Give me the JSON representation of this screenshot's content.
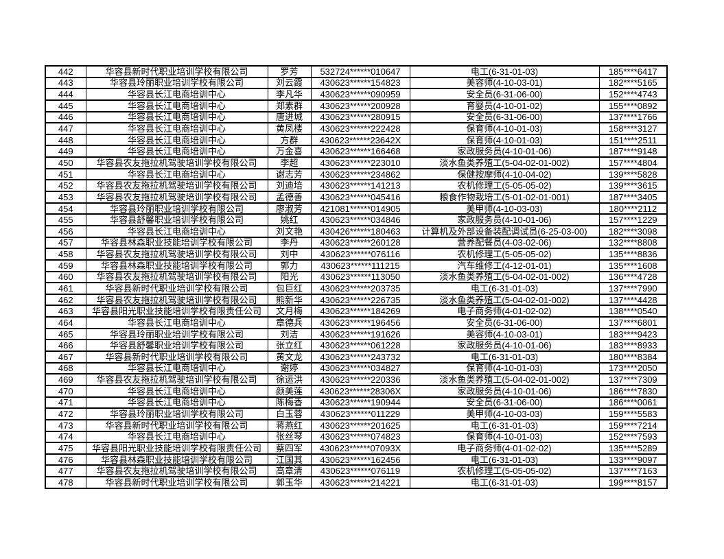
{
  "colors": {
    "background": "#ffffff",
    "border": "#000000",
    "text": "#000000"
  },
  "table": {
    "rows": [
      [
        "442",
        "华容县新时代职业培训学校有限公司",
        "罗芳",
        "532724******010647",
        "电工(6-31-01-03)",
        "185****6417"
      ],
      [
        "443",
        "华容县玲丽职业培训学校有限公司",
        "刘云霞",
        "430623******154823",
        "美容师(4-10-03-01)",
        "182****5165"
      ],
      [
        "444",
        "华容县长江电商培训中心",
        "李凡华",
        "430623******090959",
        "安全员(6-31-06-00)",
        "152****4743"
      ],
      [
        "445",
        "华容县长江电商培训中心",
        "郑素群",
        "430623******200928",
        "育婴员(4-10-01-02)",
        "155****0892"
      ],
      [
        "446",
        "华容县长江电商培训中心",
        "唐进城",
        "430623******280915",
        "安全员(6-31-06-00)",
        "137****1766"
      ],
      [
        "447",
        "华容县长江电商培训中心",
        "黄凤楼",
        "430623******222428",
        "保育师(4-10-01-03)",
        "158****3127"
      ],
      [
        "448",
        "华容县长江电商培训中心",
        "方群",
        "430623******23642X",
        "保育师(4-10-01-03)",
        "151****2511"
      ],
      [
        "449",
        "华容县长江电商培训中心",
        "万金喜",
        "430623******166468",
        "家政服务员(4-10-01-06)",
        "187****9148"
      ],
      [
        "450",
        "华容县农友拖拉机驾驶培训学校有限公司",
        "李超",
        "430623******223010",
        "淡水鱼类养殖工(5-04-02-01-002)",
        "157****4804"
      ],
      [
        "451",
        "华容县长江电商培训中心",
        "谢志芳",
        "430623******234862",
        "保健按摩师(4-10-04-02)",
        "139****5828"
      ],
      [
        "452",
        "华容县农友拖拉机驾驶培训学校有限公司",
        "刘迪培",
        "430623******141213",
        "农机修理工(5-05-05-02)",
        "139****3615"
      ],
      [
        "453",
        "华容县农友拖拉机驾驶培训学校有限公司",
        "孟德善",
        "430623******045416",
        "粮食作物栽培工(5-01-02-01-001)",
        "187****3405"
      ],
      [
        "454",
        "华容县玲丽职业培训学校有限公司",
        "廖淑芳",
        "421081******014905",
        "美甲师(4-10-03-03)",
        "180****2112"
      ],
      [
        "455",
        "华容县舒馨职业培训学校有限公司",
        "姚红",
        "430623******034846",
        "家政服务员(4-10-01-06)",
        "157****1229"
      ],
      [
        "456",
        "华容县长江电商培训中心",
        "刘文艳",
        "430426******180463",
        "计算机及外部设备装配调试员(6-25-03-00)",
        "182****3098"
      ],
      [
        "457",
        "华容县林森职业技能培训学校有限公司",
        "李丹",
        "430623******260128",
        "营养配餐员(4-03-02-06)",
        "132****8808"
      ],
      [
        "458",
        "华容县农友拖拉机驾驶培训学校有限公司",
        "刘中",
        "430623******076116",
        "农机修理工(5-05-05-02)",
        "135****8836"
      ],
      [
        "459",
        "华容县林森职业技能培训学校有限公司",
        "郭力",
        "430623******111215",
        "汽车维修工(4-12-01-01)",
        "135****1608"
      ],
      [
        "460",
        "华容县农友拖拉机驾驶培训学校有限公司",
        "阳光",
        "430623******113050",
        "淡水鱼类养殖工(5-04-02-01-002)",
        "136****4728"
      ],
      [
        "461",
        "华容县新时代职业培训学校有限公司",
        "包巨红",
        "430623******203735",
        "电工(6-31-01-03)",
        "137****7990"
      ],
      [
        "462",
        "华容县农友拖拉机驾驶培训学校有限公司",
        "熊新华",
        "430623******226735",
        "淡水鱼类养殖工(5-04-02-01-002)",
        "137****4428"
      ],
      [
        "463",
        "华容县阳光职业技能培训学校有限责任公司",
        "文月梅",
        "430623******184269",
        "电子商务师(4-01-02-02)",
        "138****0540"
      ],
      [
        "464",
        "华容县长江电商培训中心",
        "章德兵",
        "430623******196456",
        "安全员(6-31-06-00)",
        "137****6801"
      ],
      [
        "465",
        "华容县玲丽职业培训学校有限公司",
        "刘洁",
        "430623******191626",
        "美容师(4-10-03-01)",
        "183****9423"
      ],
      [
        "466",
        "华容县舒馨职业培训学校有限公司",
        "张立红",
        "430623******061228",
        "家政服务员(4-10-01-06)",
        "183****8933"
      ],
      [
        "467",
        "华容县新时代职业培训学校有限公司",
        "黄文龙",
        "430623******243732",
        "电工(6-31-01-03)",
        "180****8384"
      ],
      [
        "468",
        "华容县长江电商培训中心",
        "谢婷",
        "430623******034827",
        "保育师(4-10-01-03)",
        "173****2050"
      ],
      [
        "469",
        "华容县农友拖拉机驾驶培训学校有限公司",
        "徐运洪",
        "430623******220336",
        "淡水鱼类养殖工(5-04-02-01-002)",
        "137****7309"
      ],
      [
        "470",
        "华容县长江电商培训中心",
        "颜美莲",
        "430623******28306X",
        "家政服务员(4-10-01-06)",
        "186****7830"
      ],
      [
        "471",
        "华容县长江电商培训中心",
        "陈梅香",
        "430623******190944",
        "安全员(6-31-06-00)",
        "186****0061"
      ],
      [
        "472",
        "华容县玲丽职业培训学校有限公司",
        "白玉蓉",
        "430623******011229",
        "美甲师(4-10-03-03)",
        "159****5583"
      ],
      [
        "473",
        "华容县新时代职业培训学校有限公司",
        "蒋燕红",
        "430623******201625",
        "电工(6-31-01-03)",
        "159****7214"
      ],
      [
        "474",
        "华容县长江电商培训中心",
        "张丝琴",
        "430623******074823",
        "保育师(4-10-01-03)",
        "152****7593"
      ],
      [
        "475",
        "华容县阳光职业技能培训学校有限责任公司",
        "蔡四军",
        "430623******07093X",
        "电子商务师(4-01-02-02)",
        "135****5289"
      ],
      [
        "476",
        "华容县林森职业技能培训学校有限公司",
        "江国其",
        "430623******162456",
        "电工(6-31-01-03)",
        "133****9097"
      ],
      [
        "477",
        "华容县农友拖拉机驾驶培训学校有限公司",
        "高章清",
        "430623******076119",
        "农机修理工(5-05-05-02)",
        "137****7163"
      ],
      [
        "478",
        "华容县新时代职业培训学校有限公司",
        "郭玉华",
        "430623******214221",
        "电工(6-31-01-03)",
        "199****8157"
      ]
    ]
  }
}
